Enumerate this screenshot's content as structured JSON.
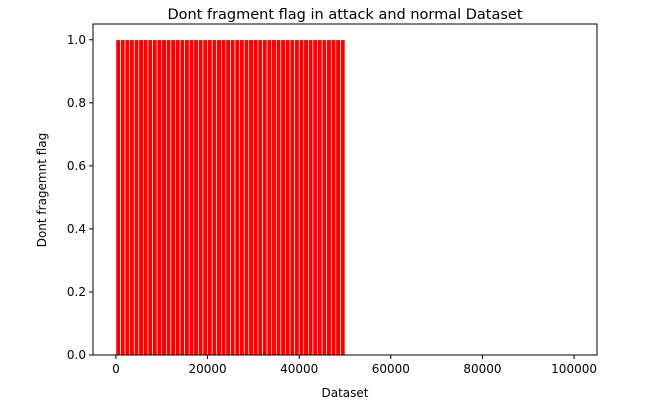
{
  "chart_data": {
    "type": "bar",
    "title": "Dont fragment flag in attack and normal Dataset",
    "xlabel": "Dataset",
    "ylabel": "Dont fragemnt flag",
    "xlim": [
      -5000,
      105000
    ],
    "ylim": [
      0,
      1.05
    ],
    "xticks": [
      0,
      20000,
      40000,
      60000,
      80000,
      100000
    ],
    "yticks": [
      0.0,
      0.2,
      0.4,
      0.6,
      0.8,
      1.0
    ],
    "xtick_labels": [
      "0",
      "20000",
      "40000",
      "60000",
      "80000",
      "100000"
    ],
    "ytick_labels": [
      "0.0",
      "0.2",
      "0.4",
      "0.6",
      "0.8",
      "1.0"
    ],
    "grid": false,
    "legend": "none",
    "bar_color": "#ff0000",
    "bar_edge_color": "#ffffff",
    "bars_x_range": [
      0,
      50000
    ],
    "bar_spacing": 1000,
    "bar_value": 1.0,
    "x_after_range_value": 0.0
  }
}
